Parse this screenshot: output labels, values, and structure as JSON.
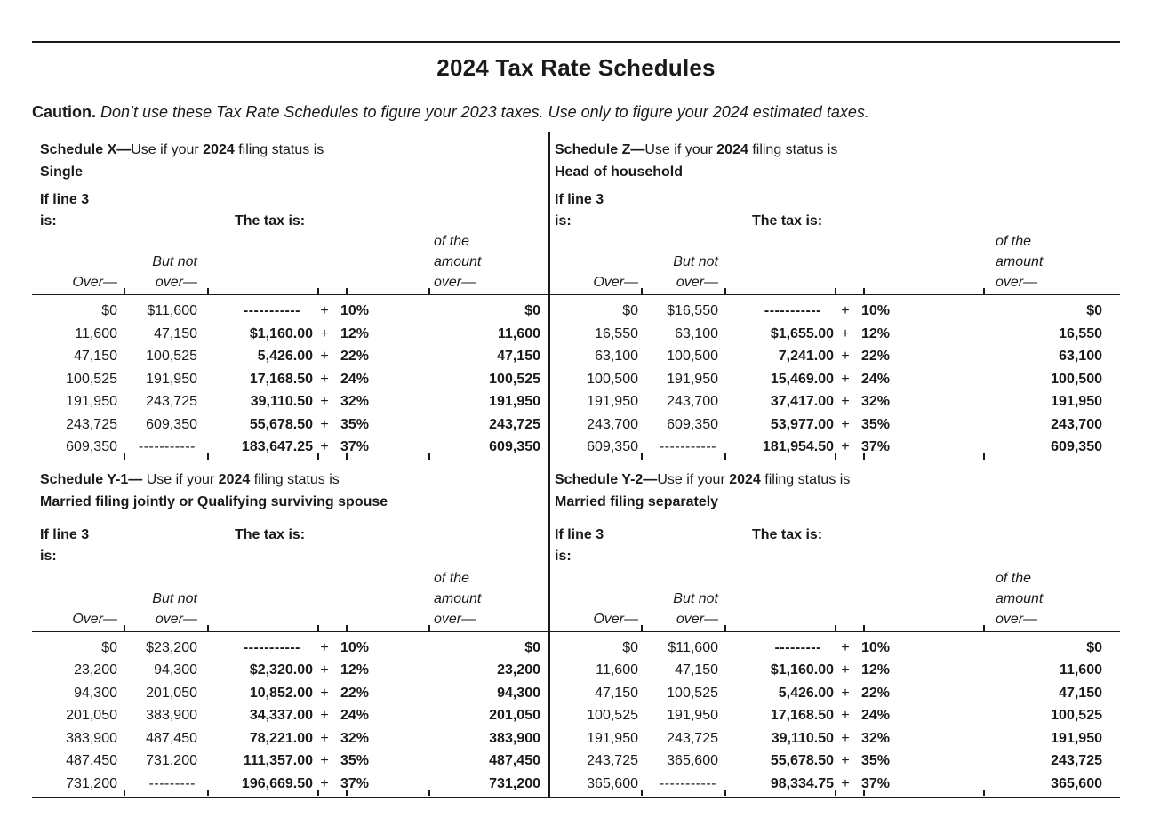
{
  "page": {
    "title": "2024 Tax Rate Schedules",
    "caution_label": "Caution.",
    "caution_text": " Don’t use these Tax Rate Schedules to figure your 2023 taxes. Use only to figure your 2024 estimated taxes."
  },
  "labels": {
    "if_line_3": "If line 3",
    "is": "is:",
    "the_tax_is": "The tax is:",
    "over": "Over—",
    "but_not": "But not",
    "over_2": "over—",
    "of_the": "of the",
    "amount": "amount",
    "over_3": "over—"
  },
  "schedules": [
    {
      "name": "Schedule X—",
      "use_text": "Use if your ",
      "year": "2024",
      "after_year": " filing status is",
      "status": "Single",
      "rows": [
        {
          "over": "$0",
          "but_not_over": "$11,600",
          "tax": "-----------",
          "plus": "+",
          "rate": "10%",
          "of_amount": "$0"
        },
        {
          "over": "11,600",
          "but_not_over": "47,150",
          "tax": "$1,160.00",
          "plus": "+",
          "rate": "12%",
          "of_amount": "11,600"
        },
        {
          "over": "47,150",
          "but_not_over": "100,525",
          "tax": "5,426.00",
          "plus": "+",
          "rate": "22%",
          "of_amount": "47,150"
        },
        {
          "over": "100,525",
          "but_not_over": "191,950",
          "tax": "17,168.50",
          "plus": "+",
          "rate": "24%",
          "of_amount": "100,525"
        },
        {
          "over": "191,950",
          "but_not_over": "243,725",
          "tax": "39,110.50",
          "plus": "+",
          "rate": "32%",
          "of_amount": "191,950"
        },
        {
          "over": "243,725",
          "but_not_over": "609,350",
          "tax": "55,678.50",
          "plus": "+",
          "rate": "35%",
          "of_amount": "243,725"
        },
        {
          "over": "609,350",
          "but_not_over": "-----------",
          "tax": "183,647.25",
          "plus": "+",
          "rate": "37%",
          "of_amount": "609,350"
        }
      ]
    },
    {
      "name": "Schedule Z—",
      "use_text": "Use if your ",
      "year": "2024",
      "after_year": " filing status is",
      "status": "Head of household",
      "rows": [
        {
          "over": "$0",
          "but_not_over": "$16,550",
          "tax": "-----------",
          "plus": "+",
          "rate": "10%",
          "of_amount": "$0"
        },
        {
          "over": "16,550",
          "but_not_over": "63,100",
          "tax": "$1,655.00",
          "plus": "+",
          "rate": "12%",
          "of_amount": "16,550"
        },
        {
          "over": "63,100",
          "but_not_over": "100,500",
          "tax": "7,241.00",
          "plus": "+",
          "rate": "22%",
          "of_amount": "63,100"
        },
        {
          "over": "100,500",
          "but_not_over": "191,950",
          "tax": "15,469.00",
          "plus": "+",
          "rate": "24%",
          "of_amount": "100,500"
        },
        {
          "over": "191,950",
          "but_not_over": "243,700",
          "tax": "37,417.00",
          "plus": "+",
          "rate": "32%",
          "of_amount": "191,950"
        },
        {
          "over": "243,700",
          "but_not_over": "609,350",
          "tax": "53,977.00",
          "plus": "+",
          "rate": "35%",
          "of_amount": "243,700"
        },
        {
          "over": "609,350",
          "but_not_over": "-----------",
          "tax": "181,954.50",
          "plus": "+",
          "rate": "37%",
          "of_amount": "609,350"
        }
      ]
    },
    {
      "name": "Schedule Y-1— ",
      "use_text": "Use if your ",
      "year": "2024",
      "after_year": " filing status is",
      "status": "Married filing jointly or Qualifying surviving spouse",
      "rows": [
        {
          "over": "$0",
          "but_not_over": "$23,200",
          "tax": "-----------",
          "plus": "+",
          "rate": "10%",
          "of_amount": "$0"
        },
        {
          "over": "23,200",
          "but_not_over": "94,300",
          "tax": "$2,320.00",
          "plus": "+",
          "rate": "12%",
          "of_amount": "23,200"
        },
        {
          "over": "94,300",
          "but_not_over": "201,050",
          "tax": "10,852.00",
          "plus": "+",
          "rate": "22%",
          "of_amount": "94,300"
        },
        {
          "over": "201,050",
          "but_not_over": "383,900",
          "tax": "34,337.00",
          "plus": "+",
          "rate": "24%",
          "of_amount": "201,050"
        },
        {
          "over": "383,900",
          "but_not_over": "487,450",
          "tax": "78,221.00",
          "plus": "+",
          "rate": "32%",
          "of_amount": "383,900"
        },
        {
          "over": "487,450",
          "but_not_over": "731,200",
          "tax": "111,357.00",
          "plus": "+",
          "rate": "35%",
          "of_amount": "487,450"
        },
        {
          "over": "731,200",
          "but_not_over": "---------",
          "tax": "196,669.50",
          "plus": "+",
          "rate": "37%",
          "of_amount": "731,200"
        }
      ]
    },
    {
      "name": "Schedule Y-2—",
      "use_text": "Use if your ",
      "year": "2024",
      "after_year": " filing status is",
      "status": "Married filing separately",
      "rows": [
        {
          "over": "$0",
          "but_not_over": "$11,600",
          "tax": "---------",
          "plus": "+",
          "rate": "10%",
          "of_amount": "$0"
        },
        {
          "over": "11,600",
          "but_not_over": "47,150",
          "tax": "$1,160.00",
          "plus": "+",
          "rate": "12%",
          "of_amount": "11,600"
        },
        {
          "over": "47,150",
          "but_not_over": "100,525",
          "tax": "5,426.00",
          "plus": "+",
          "rate": "22%",
          "of_amount": "47,150"
        },
        {
          "over": "100,525",
          "but_not_over": "191,950",
          "tax": "17,168.50",
          "plus": "+",
          "rate": "24%",
          "of_amount": "100,525"
        },
        {
          "over": "191,950",
          "but_not_over": "243,725",
          "tax": "39,110.50",
          "plus": "+",
          "rate": "32%",
          "of_amount": "191,950"
        },
        {
          "over": "243,725",
          "but_not_over": "365,600",
          "tax": "55,678.50",
          "plus": "+",
          "rate": "35%",
          "of_amount": "243,725"
        },
        {
          "over": "365,600",
          "but_not_over": "-----------",
          "tax": "98,334.75",
          "plus": "+",
          "rate": "37%",
          "of_amount": "365,600"
        }
      ]
    }
  ]
}
